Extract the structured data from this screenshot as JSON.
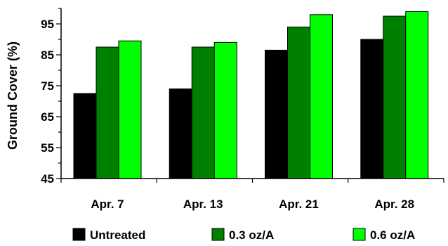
{
  "chart_data": {
    "type": "bar",
    "title": "",
    "xlabel": "",
    "ylabel": "Ground Cover (%)",
    "ylim": [
      45,
      100
    ],
    "yticks": [
      45,
      55,
      65,
      75,
      85,
      95
    ],
    "categories": [
      "Apr. 7",
      "Apr. 13",
      "Apr. 21",
      "Apr. 28"
    ],
    "series": [
      {
        "name": "Untreated",
        "color": "#000000",
        "values": [
          72.5,
          74,
          86.5,
          90
        ]
      },
      {
        "name": "0.3 oz/A",
        "color": "#008000",
        "values": [
          87.5,
          87.5,
          94,
          97.5
        ]
      },
      {
        "name": "0.6 oz/A",
        "color": "#00ff00",
        "values": [
          89.5,
          89,
          98,
          99
        ]
      }
    ],
    "grid": false,
    "legend": "bottom"
  }
}
